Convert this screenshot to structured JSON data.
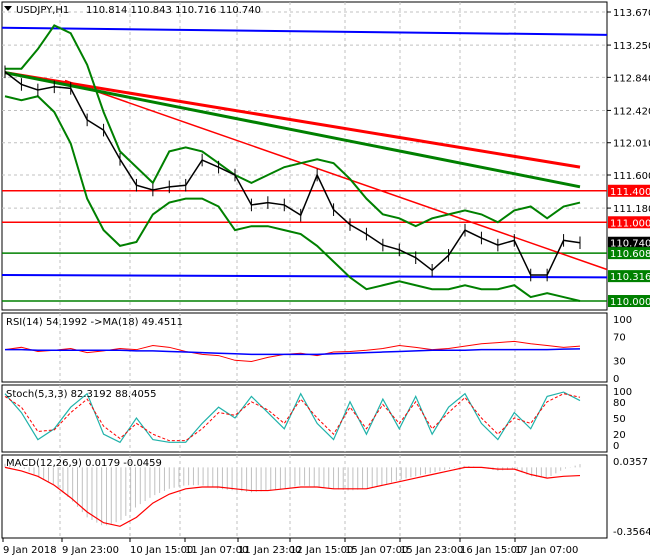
{
  "header": {
    "symbol": "USDJPY,H1",
    "ohlc": "110.814 110.843 110.716 110.740"
  },
  "chart_data": [
    {
      "type": "line",
      "title": "USDJPY,H1",
      "ylim": [
        109.94,
        113.8
      ],
      "yticks": [
        "113.670",
        "113.250",
        "112.840",
        "112.420",
        "112.010",
        "111.600",
        "111.180"
      ],
      "ytick_values": [
        113.67,
        113.25,
        112.84,
        112.42,
        112.01,
        111.6,
        111.18
      ],
      "price_labels": [
        {
          "text": "111.400",
          "value": 111.4,
          "color": "#ff0000"
        },
        {
          "text": "111.000",
          "value": 111.0,
          "color": "#ff0000"
        },
        {
          "text": "110.740",
          "value": 110.74,
          "color": "#000000"
        },
        {
          "text": "110.608",
          "value": 110.608,
          "color": "#008000"
        },
        {
          "text": "110.316",
          "value": 110.316,
          "color": "#008000"
        },
        {
          "text": "110.000",
          "value": 110.0,
          "color": "#008000"
        }
      ],
      "close": [
        112.91,
        112.75,
        112.68,
        112.72,
        112.7,
        112.3,
        112.17,
        111.8,
        111.47,
        111.41,
        111.45,
        111.47,
        111.79,
        111.7,
        111.6,
        111.22,
        111.25,
        111.22,
        111.09,
        111.6,
        111.16,
        110.97,
        110.85,
        110.71,
        110.65,
        110.55,
        110.39,
        110.58,
        110.9,
        110.8,
        110.71,
        110.77,
        110.33,
        110.33,
        110.77,
        110.74
      ],
      "upper_band": [
        112.95,
        112.95,
        113.2,
        113.5,
        113.4,
        113.0,
        112.4,
        111.9,
        111.7,
        111.5,
        111.9,
        111.95,
        111.9,
        111.75,
        111.6,
        111.5,
        111.6,
        111.7,
        111.75,
        111.8,
        111.75,
        111.55,
        111.3,
        111.1,
        111.05,
        110.95,
        111.05,
        111.1,
        111.15,
        111.1,
        111.0,
        111.15,
        111.2,
        111.05,
        111.2,
        111.25
      ],
      "lower_band": [
        112.6,
        112.55,
        112.6,
        112.4,
        112.0,
        111.3,
        110.9,
        110.7,
        110.75,
        111.1,
        111.25,
        111.3,
        111.3,
        111.2,
        110.9,
        110.95,
        110.95,
        110.9,
        110.85,
        110.7,
        110.5,
        110.3,
        110.15,
        110.2,
        110.25,
        110.2,
        110.15,
        110.15,
        110.2,
        110.15,
        110.15,
        110.2,
        110.05,
        110.1,
        110.05,
        110.0
      ],
      "ma_red": [
        112.9,
        111.7
      ],
      "ma_green": [
        112.9,
        111.45
      ],
      "trendline": [
        112.8,
        110.4
      ],
      "blue_top": [
        113.47,
        113.38
      ],
      "blue_support": [
        110.33,
        110.3
      ]
    },
    {
      "type": "line",
      "title": "RSI(14) 54.1992  ->MA(18) 49.4511",
      "yticks": [
        "100",
        "70",
        "30",
        "0"
      ],
      "ylim": [
        0,
        100
      ],
      "rsi": [
        48,
        52,
        45,
        47,
        50,
        43,
        46,
        50,
        48,
        55,
        52,
        45,
        40,
        38,
        30,
        28,
        35,
        40,
        42,
        38,
        44,
        45,
        47,
        50,
        55,
        52,
        48,
        50,
        54,
        58,
        60,
        62,
        58,
        55,
        52,
        54
      ],
      "ma": [
        48,
        48,
        47,
        47,
        47,
        47,
        47,
        47,
        46,
        46,
        45,
        44,
        43,
        42,
        41,
        40,
        40,
        40,
        40,
        40,
        41,
        42,
        43,
        44,
        45,
        46,
        47,
        47,
        47,
        48,
        48,
        48,
        48,
        48,
        49,
        49.45
      ]
    },
    {
      "type": "line",
      "title": "Stoch(5,3,3) 82.3192 88.4055",
      "yticks": [
        "100",
        "80",
        "50",
        "20",
        "0"
      ],
      "ylim": [
        0,
        100
      ],
      "k": [
        95,
        60,
        10,
        30,
        70,
        95,
        20,
        5,
        50,
        10,
        5,
        5,
        40,
        70,
        50,
        90,
        60,
        30,
        95,
        40,
        10,
        80,
        20,
        85,
        30,
        90,
        20,
        70,
        95,
        40,
        10,
        60,
        30,
        90,
        98,
        82.3
      ],
      "d": [
        90,
        70,
        25,
        28,
        60,
        85,
        35,
        12,
        40,
        20,
        8,
        8,
        30,
        60,
        55,
        80,
        65,
        40,
        85,
        50,
        20,
        70,
        30,
        75,
        40,
        80,
        30,
        60,
        88,
        50,
        20,
        50,
        40,
        80,
        95,
        88.4
      ]
    },
    {
      "type": "bar",
      "title": "MACD(12,26,9) 0.0179 -0.0459",
      "yticks": [
        "0.0357",
        "-0.3564"
      ],
      "ylim": [
        -0.3564,
        0.0357
      ],
      "hist": [
        0.02,
        0.0,
        -0.05,
        -0.1,
        -0.18,
        -0.28,
        -0.33,
        -0.3,
        -0.22,
        -0.16,
        -0.12,
        -0.1,
        -0.1,
        -0.12,
        -0.13,
        -0.14,
        -0.13,
        -0.12,
        -0.1,
        -0.11,
        -0.12,
        -0.13,
        -0.12,
        -0.1,
        -0.07,
        -0.05,
        -0.03,
        -0.01,
        0.01,
        0.0,
        -0.02,
        -0.01,
        -0.05,
        -0.06,
        -0.01,
        0.018
      ],
      "signal": [
        0.0,
        -0.02,
        -0.05,
        -0.1,
        -0.17,
        -0.25,
        -0.31,
        -0.33,
        -0.28,
        -0.2,
        -0.15,
        -0.12,
        -0.11,
        -0.11,
        -0.12,
        -0.13,
        -0.13,
        -0.12,
        -0.11,
        -0.11,
        -0.12,
        -0.12,
        -0.12,
        -0.1,
        -0.08,
        -0.06,
        -0.04,
        -0.02,
        0.0,
        0.0,
        -0.01,
        -0.01,
        -0.04,
        -0.06,
        -0.05,
        -0.046
      ]
    }
  ],
  "xaxis": [
    "9 Jan 2018",
    "9 Jan 23:00",
    "10 Jan 15:00",
    "11 Jan 07:00",
    "11 Jan 23:00",
    "12 Jan 15:00",
    "15 Jan 07:00",
    "15 Jan 23:00",
    "16 Jan 15:00",
    "17 Jan 07:00"
  ]
}
